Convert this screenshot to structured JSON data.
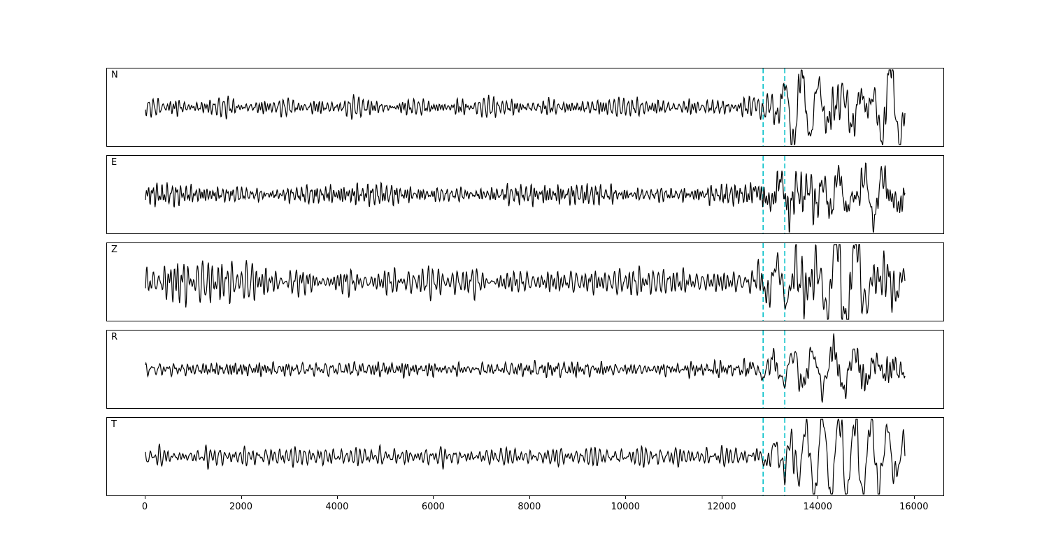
{
  "figure": {
    "background": "#ffffff",
    "trace_color": "#000000",
    "pick_color": "#00c0c8"
  },
  "chart_data": {
    "type": "line",
    "title": "",
    "xlabel": "",
    "ylabel": "",
    "xlim": [
      -800,
      16600
    ],
    "data_start": 0,
    "data_end": 15800,
    "grid": false,
    "legend": "none",
    "x_ticks": [
      0,
      2000,
      4000,
      6000,
      8000,
      10000,
      12000,
      14000,
      16000
    ],
    "x_tick_labels": [
      "0",
      "2000",
      "4000",
      "6000",
      "8000",
      "10000",
      "12000",
      "14000",
      "16000"
    ],
    "pick_lines": [
      {
        "x": 12850,
        "color": "#00c0c8",
        "style": "dashed"
      },
      {
        "x": 13300,
        "color": "#00c0c8",
        "style": "dashed"
      }
    ],
    "channels": [
      {
        "label": "N",
        "seed": 11,
        "noise_amp": 7,
        "signal_amp": 38,
        "noise_env": [
          [
            0,
            1
          ],
          [
            15800,
            1
          ]
        ],
        "signal_env": [
          [
            12500,
            0
          ],
          [
            12850,
            0.2
          ],
          [
            13250,
            0.45
          ],
          [
            13400,
            0.75
          ],
          [
            14300,
            1
          ],
          [
            14900,
            0.85
          ],
          [
            15500,
            0.7
          ],
          [
            15800,
            0.5
          ]
        ]
      },
      {
        "label": "E",
        "seed": 23,
        "noise_amp": 8,
        "signal_amp": 40,
        "noise_env": [
          [
            0,
            1
          ],
          [
            15800,
            1
          ]
        ],
        "signal_env": [
          [
            12500,
            0
          ],
          [
            12850,
            0.22
          ],
          [
            13250,
            0.5
          ],
          [
            13450,
            0.8
          ],
          [
            14400,
            1
          ],
          [
            15000,
            0.85
          ],
          [
            15800,
            0.6
          ]
        ]
      },
      {
        "label": "Z",
        "seed": 37,
        "noise_amp": 11,
        "signal_amp": 36,
        "noise_env": [
          [
            0,
            1.7
          ],
          [
            350,
            2.1
          ],
          [
            700,
            1.9
          ],
          [
            1600,
            1.5
          ],
          [
            2600,
            1.15
          ],
          [
            5000,
            1
          ],
          [
            15800,
            1
          ]
        ],
        "signal_env": [
          [
            12500,
            0
          ],
          [
            12850,
            0.2
          ],
          [
            13250,
            0.45
          ],
          [
            13400,
            0.75
          ],
          [
            14200,
            1
          ],
          [
            15000,
            0.8
          ],
          [
            15800,
            0.55
          ]
        ]
      },
      {
        "label": "R",
        "seed": 51,
        "noise_amp": 6,
        "signal_amp": 38,
        "noise_env": [
          [
            0,
            1
          ],
          [
            15800,
            1
          ]
        ],
        "signal_env": [
          [
            12500,
            0
          ],
          [
            12850,
            0.2
          ],
          [
            13250,
            0.5
          ],
          [
            13450,
            0.8
          ],
          [
            14400,
            1
          ],
          [
            15000,
            0.8
          ],
          [
            15800,
            0.55
          ]
        ]
      },
      {
        "label": "T",
        "seed": 67,
        "noise_amp": 8,
        "signal_amp": 42,
        "noise_env": [
          [
            0,
            1
          ],
          [
            15800,
            1
          ]
        ],
        "signal_env": [
          [
            12500,
            0
          ],
          [
            12850,
            0.2
          ],
          [
            13250,
            0.5
          ],
          [
            13500,
            0.8
          ],
          [
            14500,
            1
          ],
          [
            15100,
            0.95
          ],
          [
            15800,
            0.55
          ]
        ]
      }
    ]
  }
}
